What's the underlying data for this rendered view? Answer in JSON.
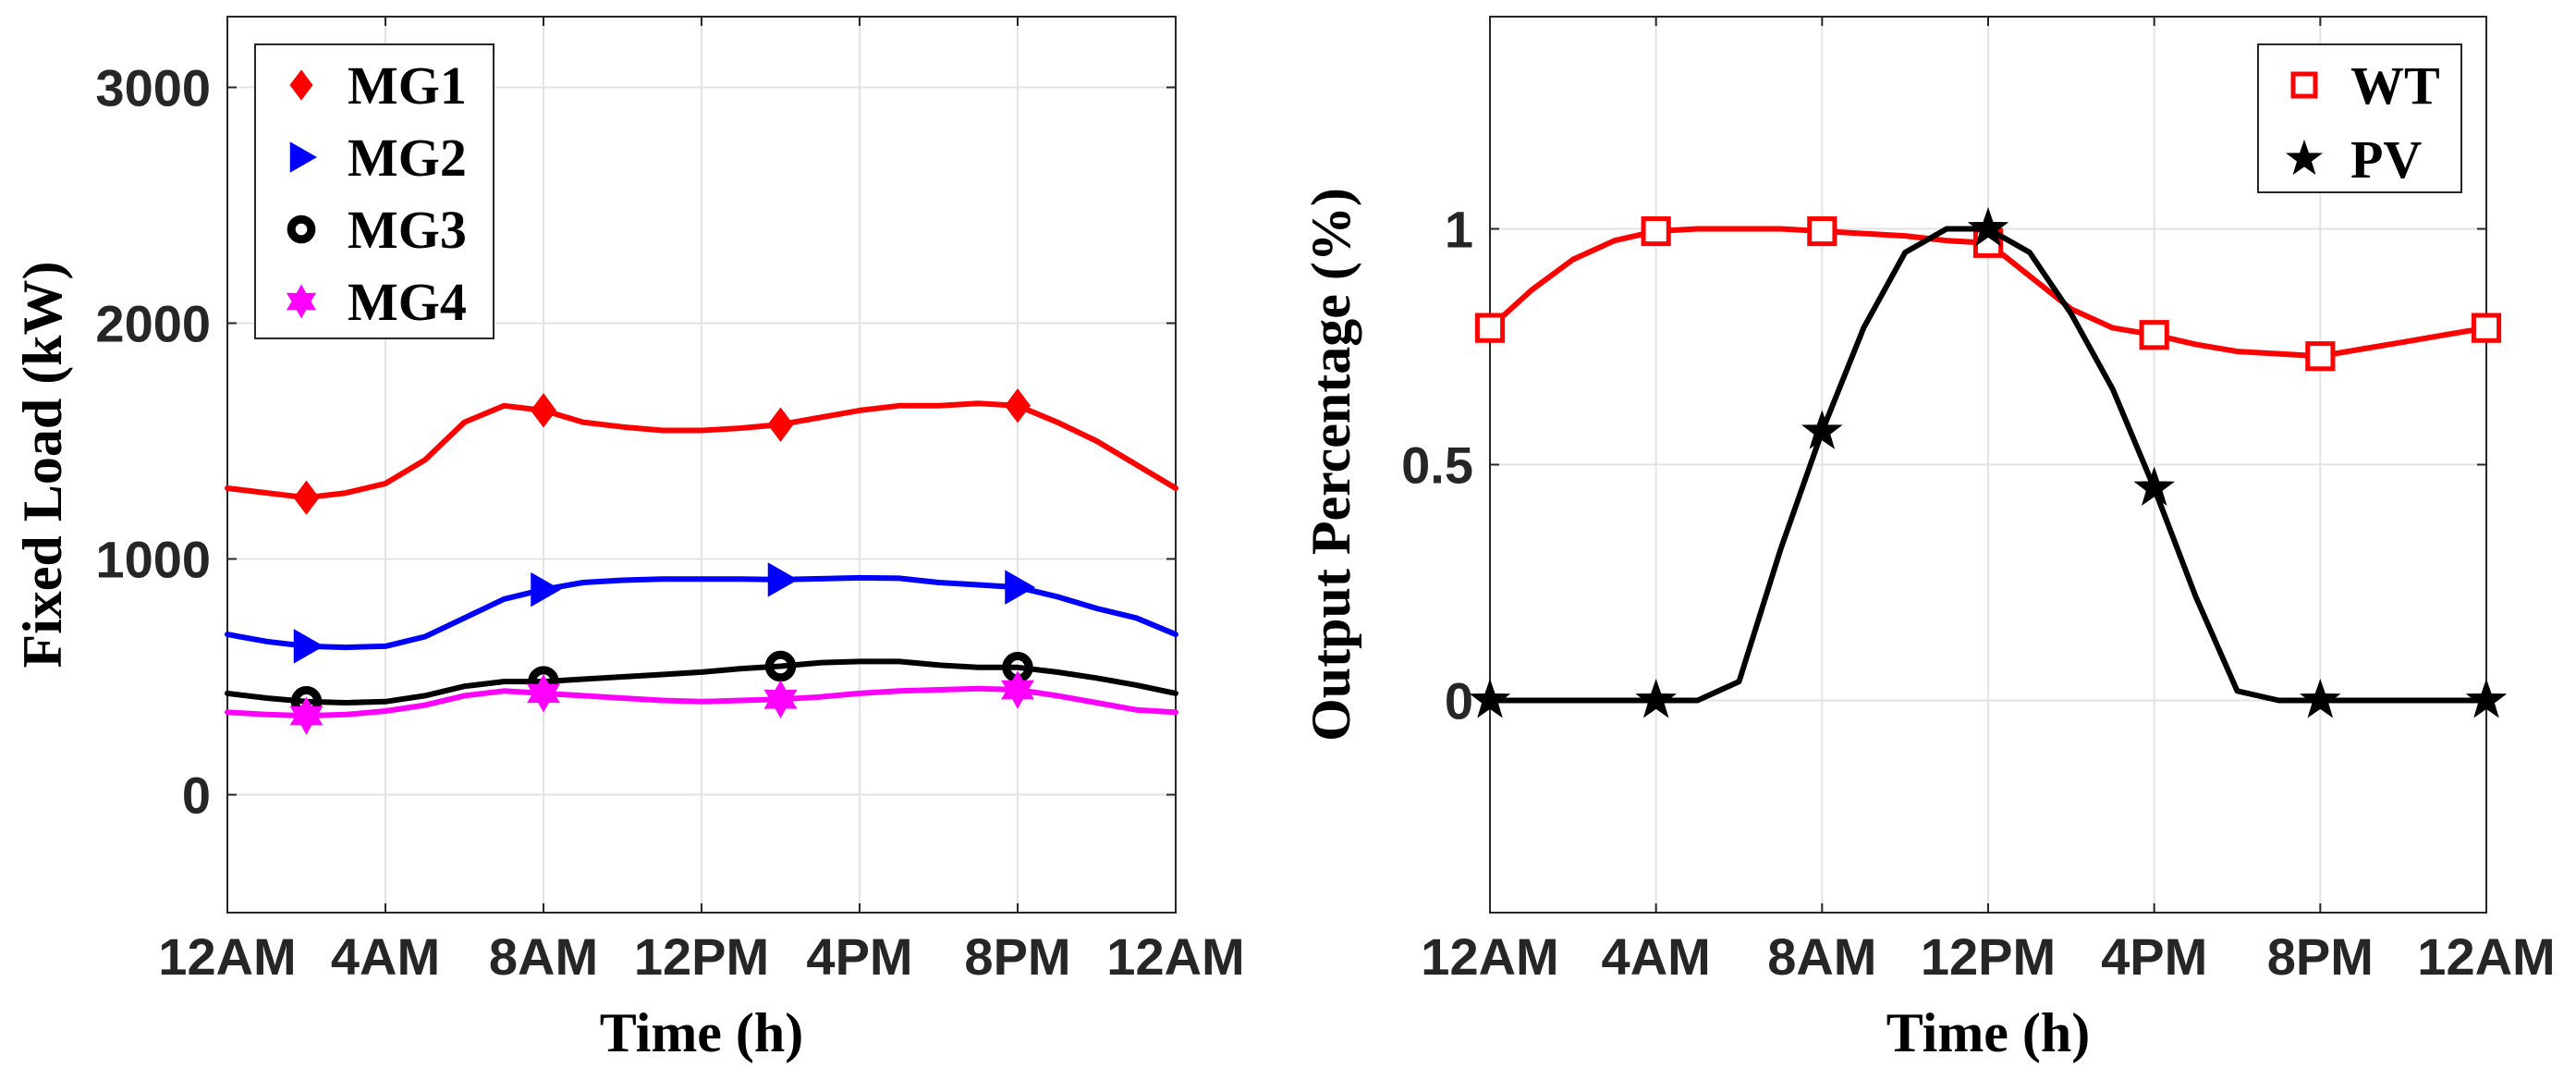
{
  "chart_data": [
    {
      "type": "line",
      "xlabel": "Time (h)",
      "ylabel": "Fixed Load (kW)",
      "xlim": [
        0,
        24
      ],
      "ylim": [
        -500,
        3300
      ],
      "xticks": [
        0,
        4,
        8,
        12,
        16,
        20,
        24
      ],
      "xtick_labels": [
        "12AM",
        "4AM",
        "8AM",
        "12PM",
        "4PM",
        "8PM",
        "12AM"
      ],
      "yticks": [
        0,
        1000,
        2000,
        3000
      ],
      "ytick_labels": [
        "0",
        "1000",
        "2000",
        "3000"
      ],
      "grid": true,
      "legend_position": "top-left",
      "x": [
        0,
        1,
        2,
        3,
        4,
        5,
        6,
        7,
        8,
        9,
        10,
        11,
        12,
        13,
        14,
        15,
        16,
        17,
        18,
        19,
        20,
        21,
        22,
        23,
        24
      ],
      "series": [
        {
          "name": "MG1",
          "color": "#ff0000",
          "marker": "diamond",
          "marker_x": [
            2,
            8,
            14,
            20
          ],
          "values": [
            1300,
            1280,
            1260,
            1280,
            1320,
            1420,
            1580,
            1650,
            1630,
            1580,
            1560,
            1545,
            1545,
            1555,
            1570,
            1600,
            1630,
            1650,
            1650,
            1660,
            1650,
            1580,
            1500,
            1400,
            1300
          ]
        },
        {
          "name": "MG2",
          "color": "#0000ff",
          "marker": "triangle-right",
          "marker_x": [
            2,
            8,
            14,
            20
          ],
          "values": [
            680,
            650,
            630,
            625,
            630,
            670,
            750,
            830,
            870,
            900,
            910,
            915,
            915,
            915,
            912,
            916,
            920,
            918,
            900,
            890,
            880,
            840,
            790,
            750,
            680
          ]
        },
        {
          "name": "MG3",
          "color": "#000000",
          "marker": "circle",
          "marker_x": [
            2,
            8,
            14,
            20
          ],
          "values": [
            430,
            410,
            395,
            390,
            395,
            420,
            460,
            480,
            480,
            490,
            500,
            510,
            520,
            535,
            545,
            560,
            565,
            565,
            550,
            540,
            540,
            520,
            495,
            465,
            430
          ]
        },
        {
          "name": "MG4",
          "color": "#ff00ff",
          "marker": "hexagram",
          "marker_x": [
            2,
            8,
            14,
            20
          ],
          "values": [
            350,
            340,
            335,
            340,
            355,
            380,
            420,
            440,
            430,
            420,
            410,
            400,
            395,
            400,
            405,
            415,
            430,
            440,
            445,
            450,
            445,
            420,
            390,
            360,
            350
          ]
        }
      ]
    },
    {
      "type": "line",
      "xlabel": "Time (h)",
      "ylabel": "Output Percentage (%)",
      "xlim": [
        0,
        24
      ],
      "ylim": [
        -0.45,
        1.45
      ],
      "xticks": [
        0,
        4,
        8,
        12,
        16,
        20,
        24
      ],
      "xtick_labels": [
        "12AM",
        "4AM",
        "8AM",
        "12PM",
        "4PM",
        "8PM",
        "12AM"
      ],
      "yticks": [
        0,
        0.5,
        1
      ],
      "ytick_labels": [
        "0",
        "0.5",
        "1"
      ],
      "grid": true,
      "legend_position": "top-right",
      "x": [
        0,
        1,
        2,
        3,
        4,
        5,
        6,
        7,
        8,
        9,
        10,
        11,
        12,
        13,
        14,
        15,
        16,
        17,
        18,
        19,
        20,
        21,
        22,
        23,
        24
      ],
      "series": [
        {
          "name": "WT",
          "color": "#ff0000",
          "marker": "square",
          "marker_x": [
            0,
            4,
            8,
            12,
            16,
            20,
            24
          ],
          "values": [
            0.79,
            0.87,
            0.935,
            0.975,
            0.995,
            1.0,
            1.0,
            1.0,
            0.995,
            0.99,
            0.985,
            0.975,
            0.97,
            0.9,
            0.83,
            0.79,
            0.775,
            0.755,
            0.74,
            0.735,
            0.73,
            0.745,
            0.76,
            0.775,
            0.79
          ]
        },
        {
          "name": "PV",
          "color": "#000000",
          "marker": "pentagram",
          "marker_x": [
            0,
            4,
            8,
            12,
            16,
            20,
            24
          ],
          "values": [
            0,
            0,
            0,
            0,
            0,
            0,
            0.04,
            0.32,
            0.57,
            0.79,
            0.95,
            1.0,
            1.0,
            0.95,
            0.82,
            0.66,
            0.45,
            0.22,
            0.02,
            0,
            0,
            0,
            0,
            0,
            0
          ]
        }
      ]
    }
  ]
}
